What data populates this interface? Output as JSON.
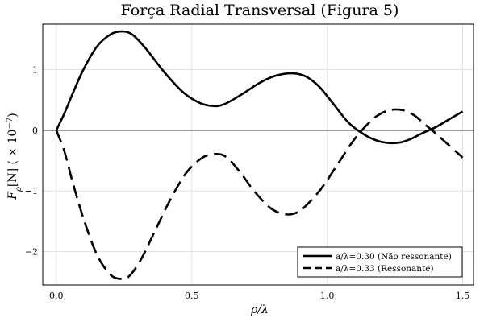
{
  "chart_data": {
    "type": "line",
    "title": "Força Radial Transversal (Figura 5)",
    "xlabel": "ρ/λ",
    "ylabel": "F_ρ[N]  ( × 10^−7)",
    "xlim": [
      -0.05,
      1.54
    ],
    "ylim": [
      -2.55,
      1.75
    ],
    "x_ticks": [
      0.0,
      0.5,
      1.0,
      1.5
    ],
    "x_tick_labels": [
      "0.0",
      "0.5",
      "1.0",
      "1.5"
    ],
    "y_ticks": [
      -2,
      -1,
      0,
      1
    ],
    "y_tick_labels": [
      "−2",
      "−1",
      "0",
      "1"
    ],
    "grid": true,
    "legend_position": "bottom-right",
    "series": [
      {
        "name": "a/λ=0.30 (Não ressonante)",
        "style": "solid",
        "color": "#000000",
        "x": [
          0.0,
          0.03,
          0.06,
          0.1,
          0.15,
          0.2,
          0.24,
          0.28,
          0.33,
          0.4,
          0.47,
          0.53,
          0.58,
          0.62,
          0.68,
          0.75,
          0.81,
          0.87,
          0.92,
          0.97,
          1.02,
          1.08,
          1.14,
          1.19,
          1.23,
          1.27,
          1.31,
          1.35,
          1.4,
          1.45,
          1.5
        ],
        "values": [
          0.0,
          0.28,
          0.6,
          1.0,
          1.38,
          1.58,
          1.63,
          1.58,
          1.35,
          0.95,
          0.62,
          0.45,
          0.4,
          0.43,
          0.58,
          0.78,
          0.9,
          0.94,
          0.89,
          0.72,
          0.45,
          0.12,
          -0.08,
          -0.18,
          -0.21,
          -0.2,
          -0.14,
          -0.05,
          0.05,
          0.18,
          0.31
        ]
      },
      {
        "name": "a/λ=0.33 (Ressonante)",
        "style": "dashed",
        "color": "#000000",
        "x": [
          0.0,
          0.03,
          0.06,
          0.1,
          0.15,
          0.2,
          0.24,
          0.27,
          0.31,
          0.36,
          0.42,
          0.48,
          0.54,
          0.59,
          0.63,
          0.68,
          0.73,
          0.79,
          0.84,
          0.88,
          0.92,
          0.98,
          1.04,
          1.1,
          1.16,
          1.2,
          1.24,
          1.28,
          1.32,
          1.36,
          1.4,
          1.45,
          1.5
        ],
        "values": [
          0.0,
          -0.35,
          -0.85,
          -1.45,
          -2.05,
          -2.38,
          -2.45,
          -2.4,
          -2.15,
          -1.7,
          -1.15,
          -0.7,
          -0.45,
          -0.39,
          -0.45,
          -0.7,
          -1.0,
          -1.28,
          -1.38,
          -1.37,
          -1.25,
          -0.95,
          -0.55,
          -0.15,
          0.15,
          0.28,
          0.34,
          0.33,
          0.25,
          0.1,
          -0.05,
          -0.25,
          -0.45
        ]
      }
    ]
  }
}
